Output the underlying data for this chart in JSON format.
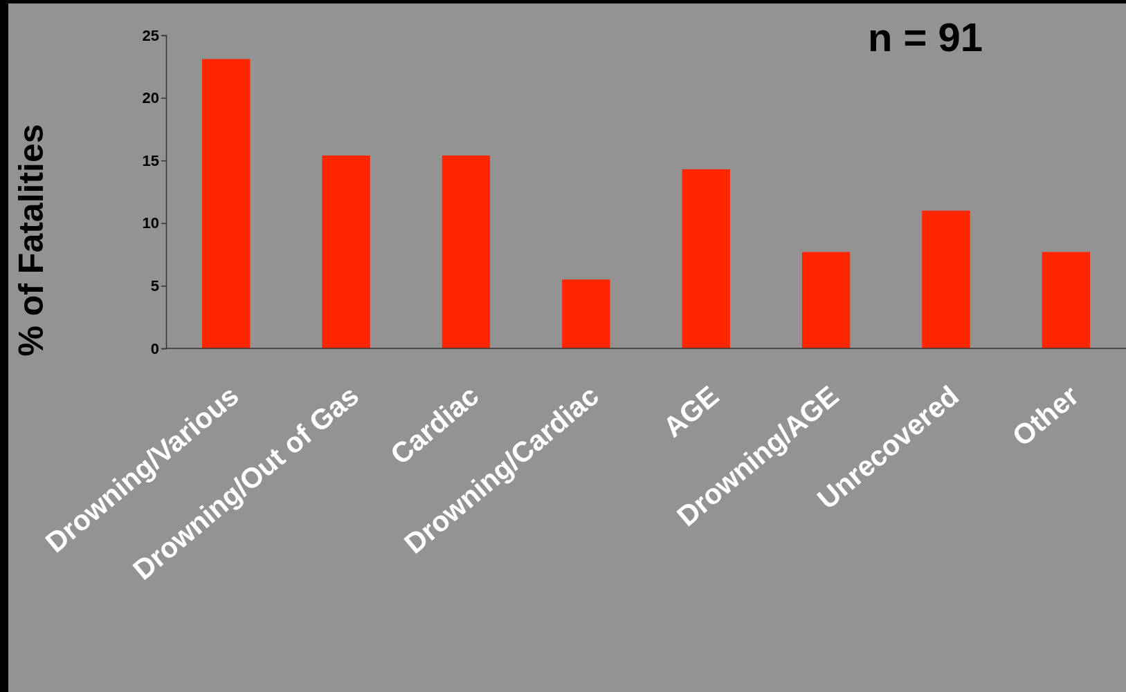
{
  "chart_data": {
    "type": "bar",
    "ylabel": "% of Fatalities",
    "categories": [
      "Drowning/Various",
      "Drowning/Out of Gas",
      "Cardiac",
      "Drowning/Cardiac",
      "AGE",
      "Drowning/AGE",
      "Unrecovered",
      "Other"
    ],
    "values": [
      23.1,
      15.4,
      15.4,
      5.5,
      14.3,
      7.7,
      11.0,
      7.7
    ],
    "color": "#ff2600",
    "ylim": [
      0,
      25
    ],
    "yticks": [
      0,
      5,
      10,
      15,
      20,
      25
    ],
    "grid": false,
    "annotations": [
      "n = 91"
    ]
  }
}
